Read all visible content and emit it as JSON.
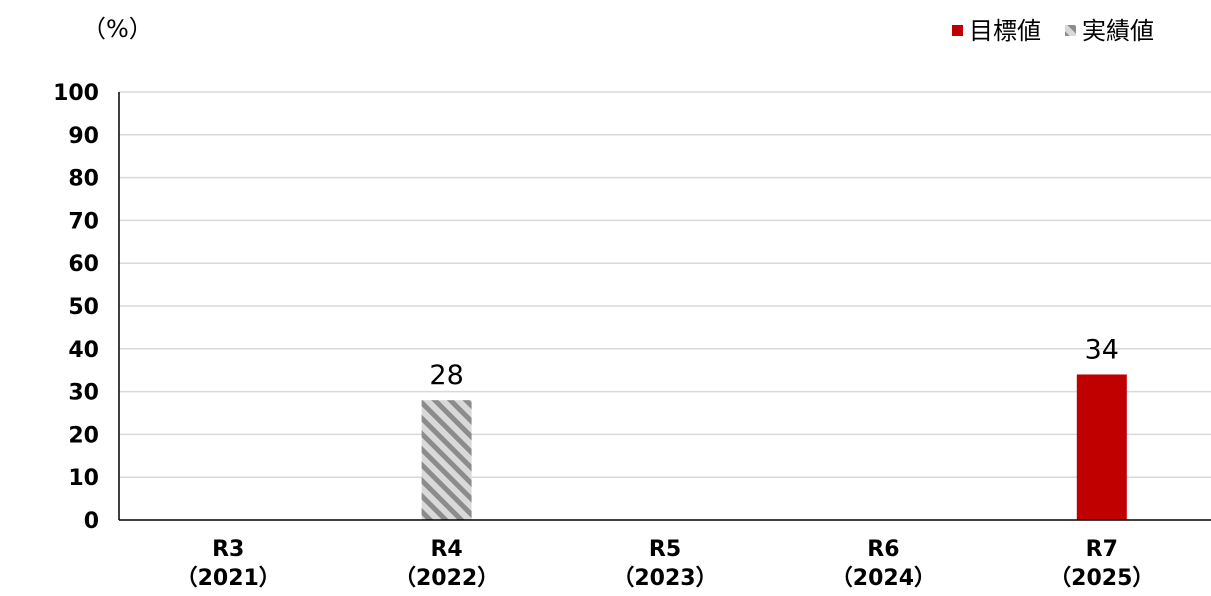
{
  "chart_data": {
    "type": "bar",
    "unit_label": "（%）",
    "categories": [
      {
        "line1": "R3",
        "line2": "（2021）"
      },
      {
        "line1": "R4",
        "line2": "（2022）"
      },
      {
        "line1": "R5",
        "line2": "（2023）"
      },
      {
        "line1": "R6",
        "line2": "（2024）"
      },
      {
        "line1": "R7",
        "line2": "（2025）"
      }
    ],
    "series": [
      {
        "name": "目標値",
        "values": [
          null,
          null,
          null,
          null,
          34
        ],
        "color": "#c00000",
        "pattern": "solid"
      },
      {
        "name": "実績値",
        "values": [
          null,
          28,
          null,
          null,
          null
        ],
        "color": "#a6a6a6",
        "pattern": "hatched"
      }
    ],
    "ylim": [
      0,
      100
    ],
    "yticks": [
      "0",
      "10",
      "20",
      "30",
      "40",
      "50",
      "60",
      "70",
      "80",
      "90",
      "100"
    ],
    "grid": true,
    "legend_position": "top-right"
  }
}
